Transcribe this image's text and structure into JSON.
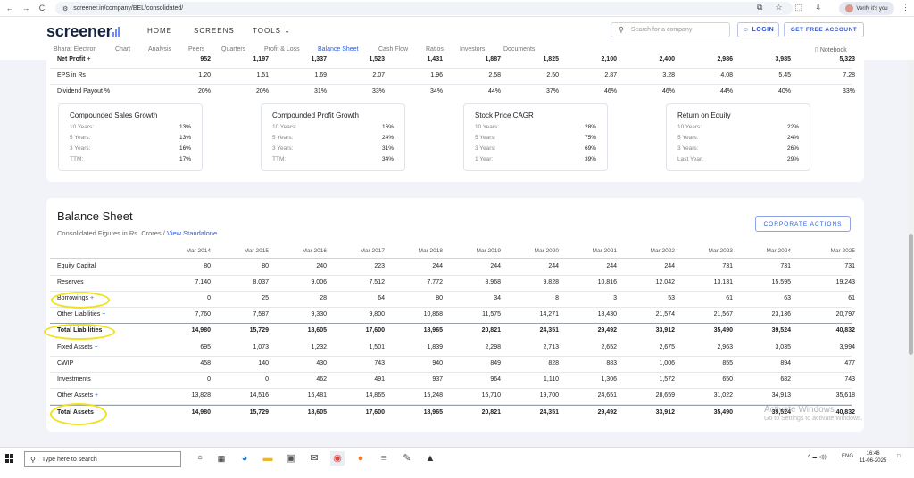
{
  "browser": {
    "url": "screener.in/company/BEL/consolidated/",
    "profile_label": "Verify it's you",
    "icons": {
      "back": "←",
      "forward": "→",
      "reload": "C",
      "tune": "⚙",
      "screenshot": "⧉",
      "star": "☆",
      "ext": "⬚",
      "menu": "⋮",
      "download": "⇩"
    }
  },
  "site": {
    "logo": "screener",
    "nav": [
      "HOME",
      "SCREENS",
      "TOOLS"
    ],
    "tools_chevron": "⌄",
    "search_placeholder": "Search for a company",
    "login": "LOGIN",
    "get_free": "GET FREE ACCOUNT",
    "subnav": [
      "Bharat Electron",
      "Chart",
      "Analysis",
      "Peers",
      "Quarters",
      "Profit & Loss",
      "Balance Sheet",
      "Cash Flow",
      "Ratios",
      "Investors",
      "Documents"
    ],
    "notebook": "Notebook"
  },
  "pl_rows": [
    {
      "label": "Net Profit",
      "plus": true,
      "values": [
        "952",
        "1,197",
        "1,337",
        "1,523",
        "1,431",
        "1,887",
        "1,825",
        "2,100",
        "2,400",
        "2,986",
        "3,985",
        "5,323"
      ]
    },
    {
      "label": "EPS in Rs",
      "plus": false,
      "values": [
        "1.20",
        "1.51",
        "1.69",
        "2.07",
        "1.96",
        "2.58",
        "2.50",
        "2.87",
        "3.28",
        "4.08",
        "5.45",
        "7.28"
      ]
    },
    {
      "label": "Dividend Payout %",
      "plus": false,
      "values": [
        "20%",
        "20%",
        "31%",
        "33%",
        "34%",
        "44%",
        "37%",
        "46%",
        "46%",
        "44%",
        "40%",
        "33%"
      ]
    }
  ],
  "growth": [
    {
      "title": "Compounded Sales Growth",
      "rows": [
        [
          "10 Years:",
          "13%"
        ],
        [
          "5 Years:",
          "13%"
        ],
        [
          "3 Years:",
          "16%"
        ],
        [
          "TTM:",
          "17%"
        ]
      ]
    },
    {
      "title": "Compounded Profit Growth",
      "rows": [
        [
          "10 Years:",
          "16%"
        ],
        [
          "5 Years:",
          "24%"
        ],
        [
          "3 Years:",
          "31%"
        ],
        [
          "TTM:",
          "34%"
        ]
      ]
    },
    {
      "title": "Stock Price CAGR",
      "rows": [
        [
          "10 Years:",
          "28%"
        ],
        [
          "5 Years:",
          "75%"
        ],
        [
          "3 Years:",
          "69%"
        ],
        [
          "1 Year:",
          "39%"
        ]
      ]
    },
    {
      "title": "Return on Equity",
      "rows": [
        [
          "10 Years:",
          "22%"
        ],
        [
          "5 Years:",
          "24%"
        ],
        [
          "3 Years:",
          "26%"
        ],
        [
          "Last Year:",
          "29%"
        ]
      ]
    }
  ],
  "balance_sheet": {
    "title": "Balance Sheet",
    "subtitle": "Consolidated Figures in Rs. Crores / ",
    "standalone_link": "View Standalone",
    "corporate_actions": "CORPORATE ACTIONS",
    "years": [
      "Mar 2014",
      "Mar 2015",
      "Mar 2016",
      "Mar 2017",
      "Mar 2018",
      "Mar 2019",
      "Mar 2020",
      "Mar 2021",
      "Mar 2022",
      "Mar 2023",
      "Mar 2024",
      "Mar 2025"
    ],
    "rows": [
      {
        "label": "Equity Capital",
        "plus": false,
        "bold": false,
        "values": [
          "80",
          "80",
          "240",
          "223",
          "244",
          "244",
          "244",
          "244",
          "244",
          "731",
          "731",
          "731"
        ]
      },
      {
        "label": "Reserves",
        "plus": false,
        "bold": false,
        "values": [
          "7,140",
          "8,037",
          "9,006",
          "7,512",
          "7,772",
          "8,968",
          "9,828",
          "10,816",
          "12,042",
          "13,131",
          "15,595",
          "19,243"
        ]
      },
      {
        "label": "Borrowings",
        "plus": true,
        "bold": false,
        "values": [
          "0",
          "25",
          "28",
          "64",
          "80",
          "34",
          "8",
          "3",
          "53",
          "61",
          "63",
          "61"
        ]
      },
      {
        "label": "Other Liabilities",
        "plus": true,
        "bold": false,
        "values": [
          "7,760",
          "7,587",
          "9,330",
          "9,800",
          "10,868",
          "11,575",
          "14,271",
          "18,430",
          "21,574",
          "21,567",
          "23,136",
          "20,797"
        ]
      },
      {
        "label": "Total Liabilities",
        "plus": false,
        "bold": true,
        "values": [
          "14,980",
          "15,729",
          "18,605",
          "17,600",
          "18,965",
          "20,821",
          "24,351",
          "29,492",
          "33,912",
          "35,490",
          "39,524",
          "40,832"
        ]
      },
      {
        "label": "Fixed Assets",
        "plus": true,
        "bold": false,
        "values": [
          "695",
          "1,073",
          "1,232",
          "1,501",
          "1,839",
          "2,298",
          "2,713",
          "2,652",
          "2,675",
          "2,963",
          "3,035",
          "3,994"
        ]
      },
      {
        "label": "CWIP",
        "plus": false,
        "bold": false,
        "values": [
          "458",
          "140",
          "430",
          "743",
          "940",
          "849",
          "828",
          "883",
          "1,006",
          "855",
          "894",
          "477"
        ]
      },
      {
        "label": "Investments",
        "plus": false,
        "bold": false,
        "values": [
          "0",
          "0",
          "462",
          "491",
          "937",
          "964",
          "1,110",
          "1,306",
          "1,572",
          "650",
          "682",
          "743"
        ]
      },
      {
        "label": "Other Assets",
        "plus": true,
        "bold": false,
        "values": [
          "13,828",
          "14,516",
          "16,481",
          "14,865",
          "15,248",
          "16,710",
          "19,700",
          "24,651",
          "28,659",
          "31,022",
          "34,913",
          "35,618"
        ]
      },
      {
        "label": "Total Assets",
        "plus": false,
        "bold": true,
        "values": [
          "14,980",
          "15,729",
          "18,605",
          "17,600",
          "18,965",
          "20,821",
          "24,351",
          "29,492",
          "33,912",
          "35,490",
          "39,524",
          "40,832"
        ]
      }
    ]
  },
  "watermark": {
    "line1": "Activate Windows",
    "line2": "Go to Settings to activate Windows."
  },
  "taskbar": {
    "search_placeholder": "Type here to search",
    "clock_time": "16:46",
    "clock_date": "11-06-2025",
    "lang": "ENG",
    "tray": "^ ☁ ◁))"
  },
  "colors": {
    "accent": "#2e5bd7",
    "highlight": "#f1e11c",
    "page_bg": "#f1f3f8"
  }
}
